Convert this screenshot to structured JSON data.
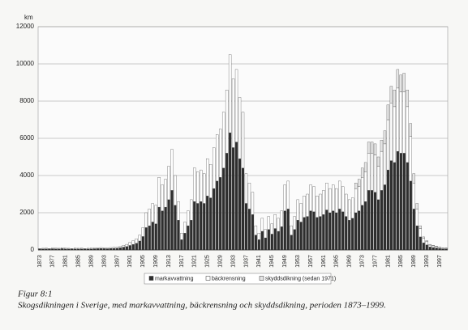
{
  "chart_data": {
    "type": "stacked_bar",
    "y_label": "km",
    "caption_label": "Figur 8:1",
    "caption": "Skogsdikningen i Sverige, med markavvattning, bäckrensning och skyddsdikning, perioden 1873–1999.",
    "categories": [
      "1873",
      null,
      null,
      null,
      "1877",
      null,
      null,
      null,
      "1881",
      null,
      null,
      null,
      "1885",
      null,
      null,
      null,
      "1889",
      null,
      null,
      null,
      "1893",
      null,
      null,
      null,
      "1897",
      null,
      null,
      null,
      "1901",
      null,
      null,
      null,
      "1905",
      null,
      null,
      null,
      "1909",
      null,
      null,
      null,
      "1913",
      null,
      null,
      null,
      "1917",
      null,
      null,
      null,
      "1921",
      null,
      null,
      null,
      "1925",
      null,
      null,
      null,
      "1929",
      null,
      null,
      null,
      "1933",
      null,
      null,
      null,
      "1937",
      null,
      null,
      null,
      "1941",
      null,
      null,
      null,
      "1945",
      null,
      null,
      null,
      "1949",
      null,
      null,
      null,
      "1953",
      null,
      null,
      null,
      "1957",
      null,
      null,
      null,
      "1961",
      null,
      null,
      null,
      "1965",
      null,
      null,
      null,
      "1969",
      null,
      null,
      null,
      "1973",
      null,
      null,
      null,
      "1977",
      null,
      null,
      null,
      "1981",
      null,
      null,
      null,
      "1985",
      null,
      null,
      null,
      "1989",
      null,
      null,
      null,
      "1993",
      null,
      null,
      null,
      "1997",
      null,
      null
    ],
    "series": [
      {
        "name": "markavvattning",
        "color": "#2e2e2e",
        "values": [
          50,
          55,
          60,
          50,
          65,
          60,
          55,
          70,
          60,
          55,
          50,
          60,
          55,
          60,
          50,
          55,
          60,
          65,
          70,
          80,
          70,
          65,
          80,
          85,
          90,
          120,
          150,
          180,
          240,
          300,
          360,
          480,
          720,
          1200,
          1300,
          1500,
          1400,
          2300,
          2100,
          2300,
          2700,
          3200,
          2400,
          1600,
          550,
          900,
          1300,
          1600,
          2600,
          2500,
          2600,
          2500,
          2900,
          2800,
          3300,
          3700,
          3900,
          4400,
          5200,
          6300,
          5500,
          5800,
          4900,
          4400,
          2500,
          2200,
          1900,
          800,
          550,
          1000,
          650,
          1100,
          850,
          1150,
          1000,
          1250,
          2100,
          2200,
          800,
          1100,
          1600,
          1500,
          1750,
          1800,
          2100,
          2050,
          1750,
          1800,
          1900,
          2150,
          2000,
          2100,
          2000,
          2200,
          2050,
          1800,
          1600,
          1700,
          2000,
          2100,
          2400,
          2600,
          3200,
          3200,
          3100,
          2700,
          3200,
          3500,
          4300,
          4800,
          4700,
          5300,
          5200,
          5200,
          4700,
          3700,
          2200,
          1300,
          700,
          380,
          270,
          160,
          130,
          110,
          80,
          55,
          55
        ]
      },
      {
        "name": "bäckrensning",
        "color": "#ffffff",
        "values": [
          30,
          35,
          40,
          30,
          45,
          40,
          35,
          50,
          40,
          35,
          30,
          40,
          35,
          40,
          30,
          35,
          40,
          45,
          50,
          50,
          50,
          45,
          50,
          55,
          60,
          80,
          100,
          120,
          160,
          200,
          240,
          320,
          480,
          800,
          900,
          1000,
          1000,
          1600,
          1400,
          1500,
          1800,
          2200,
          1600,
          1000,
          350,
          600,
          800,
          1100,
          1800,
          1700,
          1700,
          1600,
          2000,
          1800,
          2200,
          2500,
          2600,
          3000,
          3400,
          4200,
          3700,
          3900,
          3300,
          3000,
          1600,
          1400,
          1200,
          500,
          350,
          700,
          450,
          700,
          550,
          750,
          700,
          850,
          1400,
          1500,
          500,
          700,
          1100,
          1000,
          1150,
          1200,
          1400,
          1350,
          1150,
          1200,
          1300,
          1450,
          1300,
          1400,
          1300,
          1500,
          1350,
          1200,
          1100,
          1100,
          1300,
          1300,
          1500,
          1600,
          2000,
          2000,
          2000,
          1800,
          2100,
          2200,
          2700,
          3100,
          3000,
          3400,
          3300,
          3300,
          3000,
          2400,
          1400,
          900,
          450,
          240,
          170,
          100,
          90,
          70,
          50,
          35,
          35
        ]
      },
      {
        "name": "skyddsdikning (sedan 1971)",
        "color": "#e6e6e6",
        "values": [
          null,
          null,
          null,
          null,
          null,
          null,
          null,
          null,
          null,
          null,
          null,
          null,
          null,
          null,
          null,
          null,
          null,
          null,
          null,
          null,
          null,
          null,
          null,
          null,
          null,
          null,
          null,
          null,
          null,
          null,
          null,
          null,
          null,
          null,
          null,
          null,
          null,
          null,
          null,
          null,
          null,
          null,
          null,
          null,
          null,
          null,
          null,
          null,
          null,
          null,
          null,
          null,
          null,
          null,
          null,
          null,
          null,
          null,
          null,
          null,
          null,
          null,
          null,
          null,
          null,
          null,
          null,
          null,
          null,
          null,
          null,
          null,
          null,
          null,
          null,
          null,
          null,
          null,
          null,
          null,
          null,
          null,
          null,
          null,
          null,
          null,
          null,
          null,
          null,
          null,
          null,
          null,
          null,
          null,
          null,
          null,
          null,
          null,
          300,
          400,
          500,
          500,
          600,
          600,
          600,
          500,
          600,
          700,
          800,
          900,
          900,
          1000,
          900,
          1000,
          900,
          700,
          500,
          300,
          150,
          80,
          60,
          40,
          30,
          20,
          20,
          10,
          10
        ]
      }
    ],
    "ylim": [
      0,
      12000
    ],
    "yticks": [
      0,
      2000,
      4000,
      6000,
      8000,
      10000,
      12000
    ],
    "grid": true
  }
}
